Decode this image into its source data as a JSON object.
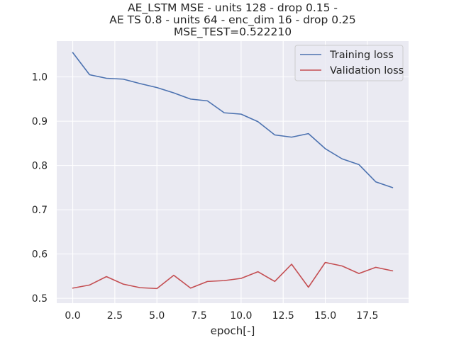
{
  "chart_data": {
    "type": "line",
    "title_lines": [
      "AE_LSTM MSE - units 128 - drop 0.15 -",
      "AE TS 0.8 - units 64 - enc_dim 16 - drop 0.25",
      "MSE_TEST=0.522210"
    ],
    "xlabel": "epoch[-]",
    "ylabel": "",
    "xlim": [
      -0.95,
      19.95
    ],
    "ylim": [
      0.489,
      1.081
    ],
    "xticks": [
      0,
      2.5,
      5,
      7.5,
      10,
      12.5,
      15,
      17.5
    ],
    "xtick_labels": [
      "0.0",
      "2.5",
      "5.0",
      "7.5",
      "10.0",
      "12.5",
      "15.0",
      "17.5"
    ],
    "yticks": [
      0.5,
      0.6,
      0.7,
      0.8,
      0.9,
      1.0
    ],
    "ytick_labels": [
      "0.5",
      "0.6",
      "0.7",
      "0.8",
      "0.9",
      "1.0"
    ],
    "grid": true,
    "legend_position": "top-right",
    "x": [
      0,
      1,
      2,
      3,
      4,
      5,
      6,
      7,
      8,
      9,
      10,
      11,
      12,
      13,
      14,
      15,
      16,
      17,
      18,
      19
    ],
    "series": [
      {
        "name": "Training loss",
        "color": "#4c72b0",
        "values": [
          1.055,
          1.005,
          0.997,
          0.995,
          0.985,
          0.976,
          0.964,
          0.95,
          0.946,
          0.919,
          0.916,
          0.899,
          0.869,
          0.864,
          0.872,
          0.838,
          0.815,
          0.802,
          0.763,
          0.75
        ]
      },
      {
        "name": "Validation loss",
        "color": "#c44e52",
        "values": [
          0.523,
          0.53,
          0.549,
          0.532,
          0.524,
          0.522,
          0.552,
          0.523,
          0.538,
          0.54,
          0.545,
          0.56,
          0.538,
          0.577,
          0.525,
          0.581,
          0.573,
          0.556,
          0.57,
          0.562
        ]
      }
    ],
    "plot_background": "#eaeaf2"
  }
}
